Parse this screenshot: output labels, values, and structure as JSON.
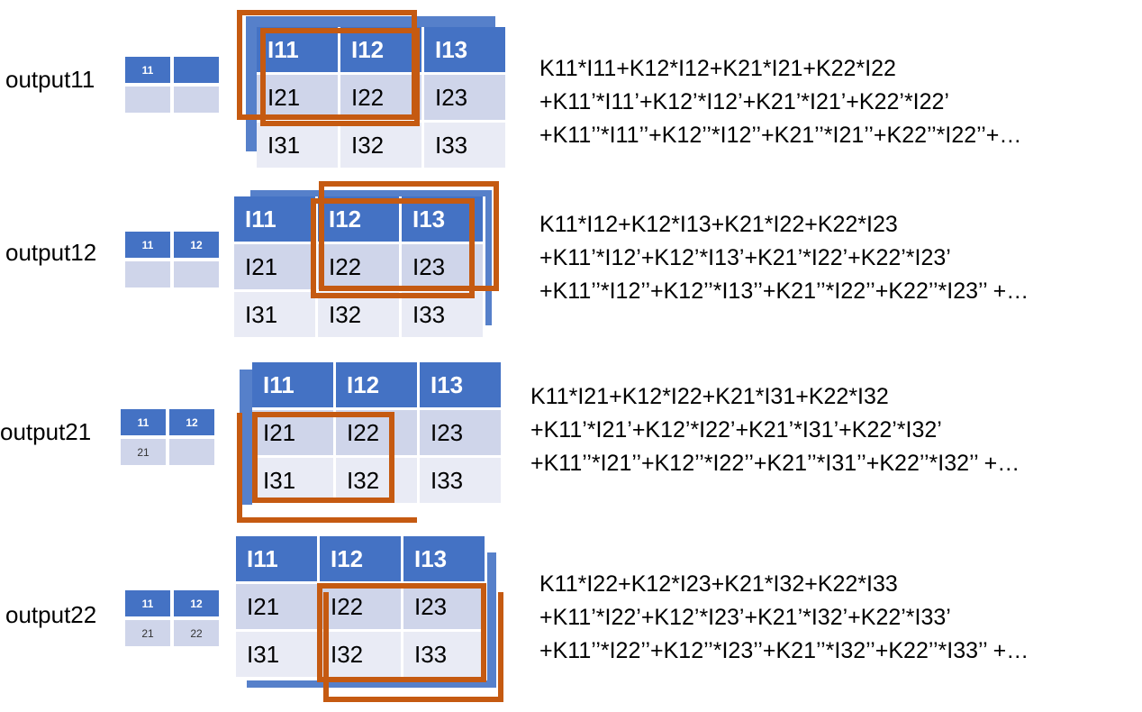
{
  "colors": {
    "header": "#4472c4",
    "row_light": "#cfd5ea",
    "row_lighter": "#e9ebf5",
    "kernel_box": "#c55a11"
  },
  "input_cells": {
    "r1": [
      "I11",
      "I12",
      "I13"
    ],
    "r2": [
      "I21",
      "I22",
      "I23"
    ],
    "r3": [
      "I31",
      "I32",
      "I33"
    ]
  },
  "rows": [
    {
      "label": "output11",
      "mini": {
        "h1": "11",
        "h2": "",
        "b1": "",
        "b2": ""
      },
      "formula": [
        "K11*I11+K12*I12+K21*I21+K22*I22",
        "+K11’*I11’+K12’*I12’+K21’*I21’+K22’*I22’",
        "+K11’’*I11’’+K12’’*I12’’+K21’’*I21’’+K22’’*I22’’+…"
      ]
    },
    {
      "label": "output12",
      "mini": {
        "h1": "11",
        "h2": "12",
        "b1": "",
        "b2": ""
      },
      "formula": [
        "K11*I12+K12*I13+K21*I22+K22*I23",
        "+K11’*I12’+K12’*I13’+K21’*I22’+K22’*I23’",
        "+K11’’*I12’’+K12’’*I13’’+K21’’*I22’’+K22’’*I23’’ +…"
      ]
    },
    {
      "label": "output21",
      "mini": {
        "h1": "11",
        "h2": "12",
        "b1": "21",
        "b2": ""
      },
      "formula": [
        "K11*I21+K12*I22+K21*I31+K22*I32",
        "+K11’*I21’+K12’*I22’+K21’*I31’+K22’*I32’",
        "+K11’’*I21’’+K12’’*I22’’+K21’’*I31’’+K22’’*I32’’ +…"
      ]
    },
    {
      "label": "output22",
      "mini": {
        "h1": "11",
        "h2": "12",
        "b1": "21",
        "b2": "22"
      },
      "formula": [
        "K11*I22+K12*I23+K21*I32+K22*I33",
        "+K11’*I22’+K12’*I23’+K21’*I32’+K22’*I33’",
        "+K11’’*I22’’+K12’’*I23’’+K21’’*I32’’+K22’’*I33’’ +…"
      ]
    }
  ]
}
